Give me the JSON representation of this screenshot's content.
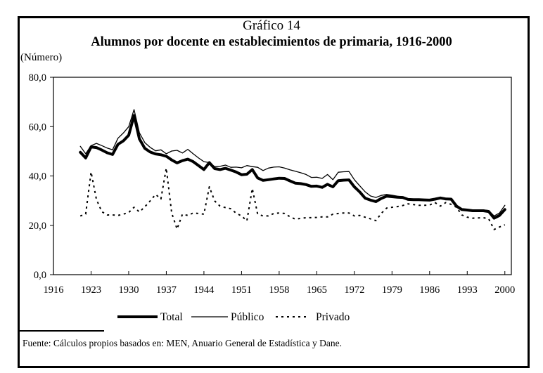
{
  "header": {
    "chart_number": "Gráfico 14",
    "title": "Alumnos por docente en establecimientos de primaria, 1916-2000",
    "y_unit": "(Número)"
  },
  "footer": {
    "source": "Fuente: Cálculos propios basados en: MEN, Anuario General de Estadística y Dane."
  },
  "chart_data": {
    "type": "line",
    "title": "Alumnos por docente en establecimientos de primaria, 1916-2000",
    "subtitle": "Gráfico 14",
    "xlabel": "",
    "ylabel": "(Número)",
    "xlim": [
      1916,
      2000
    ],
    "ylim": [
      0,
      80
    ],
    "x_ticks": [
      "1916",
      "1923",
      "1930",
      "1937",
      "1944",
      "1951",
      "1958",
      "1965",
      "1972",
      "1979",
      "1986",
      "1993",
      "2000"
    ],
    "y_ticks": [
      "0,0",
      "20,0",
      "40,0",
      "60,0",
      "80,0"
    ],
    "grid": false,
    "legend_position": "bottom",
    "x": [
      1921,
      1922,
      1923,
      1924,
      1925,
      1926,
      1927,
      1928,
      1929,
      1930,
      1931,
      1932,
      1933,
      1934,
      1935,
      1936,
      1937,
      1938,
      1939,
      1940,
      1941,
      1942,
      1943,
      1944,
      1945,
      1946,
      1947,
      1948,
      1949,
      1950,
      1951,
      1952,
      1953,
      1954,
      1955,
      1956,
      1957,
      1958,
      1959,
      1960,
      1961,
      1962,
      1963,
      1964,
      1965,
      1966,
      1967,
      1968,
      1969,
      1970,
      1971,
      1972,
      1973,
      1974,
      1975,
      1976,
      1977,
      1978,
      1979,
      1980,
      1981,
      1982,
      1983,
      1984,
      1985,
      1986,
      1987,
      1988,
      1989,
      1990,
      1991,
      1992,
      1993,
      1994,
      1995,
      1996,
      1997,
      1998,
      1999,
      2000
    ],
    "series": [
      {
        "name": "Total",
        "style": "thick",
        "values": [
          49.6,
          47.3,
          51.8,
          51.5,
          50.5,
          49.4,
          48.7,
          52.8,
          54.2,
          56.5,
          64.5,
          55.0,
          51.2,
          49.7,
          48.9,
          48.6,
          48.0,
          46.5,
          45.3,
          46.2,
          46.8,
          45.8,
          44.2,
          42.6,
          45.4,
          43.0,
          42.6,
          43.1,
          42.4,
          41.6,
          40.5,
          40.7,
          42.6,
          39.2,
          38.2,
          38.5,
          38.8,
          39.1,
          39.0,
          38.0,
          37.1,
          36.9,
          36.5,
          35.8,
          35.9,
          35.4,
          36.6,
          35.6,
          38.1,
          38.3,
          38.4,
          35.6,
          33.5,
          31.0,
          30.2,
          29.6,
          30.9,
          31.8,
          31.6,
          31.4,
          31.3,
          30.5,
          30.4,
          30.4,
          30.3,
          30.2,
          30.6,
          31.1,
          30.7,
          30.6,
          27.8,
          26.4,
          26.2,
          25.9,
          25.9,
          25.9,
          25.6,
          22.9,
          24.0,
          26.4
        ]
      },
      {
        "name": "Público",
        "style": "thin",
        "values": [
          52.0,
          49.0,
          52.3,
          53.2,
          52.3,
          51.3,
          50.6,
          55.3,
          57.4,
          60.0,
          66.9,
          57.5,
          53.5,
          51.6,
          50.2,
          50.6,
          49.0,
          50.1,
          50.4,
          49.3,
          50.8,
          49.0,
          47.3,
          45.8,
          45.4,
          43.8,
          43.9,
          44.4,
          43.5,
          43.6,
          43.3,
          44.2,
          43.8,
          43.5,
          42.2,
          43.2,
          43.6,
          43.7,
          43.2,
          42.5,
          41.9,
          41.3,
          40.6,
          39.4,
          39.5,
          39.0,
          40.6,
          38.5,
          41.5,
          41.7,
          41.8,
          38.5,
          36.0,
          33.6,
          31.9,
          31.3,
          32.1,
          32.5,
          32.2,
          31.8,
          31.5,
          30.6,
          30.5,
          30.5,
          30.4,
          30.3,
          30.8,
          31.3,
          30.9,
          30.8,
          28.0,
          26.6,
          26.3,
          26.1,
          26.1,
          26.2,
          26.0,
          23.8,
          25.0,
          28.1
        ]
      },
      {
        "name": "Privado",
        "style": "dashed",
        "values": [
          23.8,
          24.5,
          41.6,
          30.5,
          25.5,
          24.2,
          24.2,
          24.0,
          24.5,
          25.2,
          27.3,
          25.4,
          27.5,
          29.9,
          32.5,
          30.7,
          43.2,
          25.0,
          18.5,
          24.5,
          24.0,
          25.0,
          24.8,
          24.5,
          35.6,
          29.9,
          27.8,
          27.2,
          26.7,
          24.9,
          23.8,
          21.8,
          34.9,
          24.5,
          23.8,
          23.8,
          24.8,
          25.0,
          24.8,
          23.5,
          22.5,
          22.8,
          23.1,
          23.1,
          23.2,
          23.4,
          23.4,
          24.5,
          24.8,
          25.0,
          25.0,
          23.8,
          24.0,
          23.3,
          22.6,
          21.9,
          24.8,
          27.0,
          27.3,
          27.6,
          28.0,
          28.7,
          28.4,
          28.1,
          28.1,
          28.2,
          29.2,
          27.8,
          29.2,
          28.5,
          27.3,
          24.2,
          23.3,
          22.9,
          23.0,
          23.1,
          22.6,
          18.3,
          19.3,
          20.2
        ]
      }
    ],
    "colors": {
      "line": "#000000",
      "axis": "#000000"
    }
  }
}
